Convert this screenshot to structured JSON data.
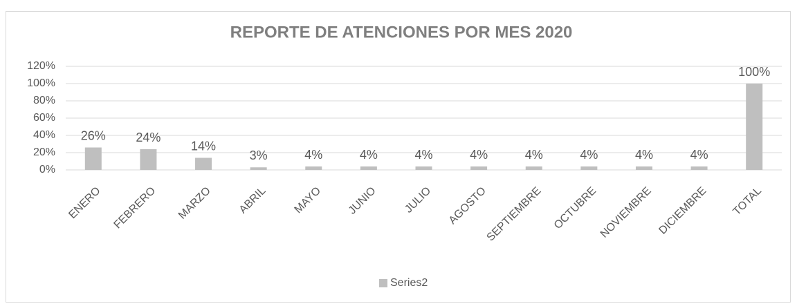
{
  "chart_data": {
    "type": "bar",
    "title": "REPORTE DE ATENCIONES POR MES 2020",
    "categories": [
      "ENERO",
      "FEBRERO",
      "MARZO",
      "ABRIL",
      "MAYO",
      "JUNIO",
      "JULIO",
      "AGOSTO",
      "SEPTIEMBRE",
      "OCTUBRE",
      "NOVIEMBRE",
      "DICIEMBRE",
      "TOTAL"
    ],
    "series": [
      {
        "name": "Series2",
        "color": "#bfbfbf",
        "values": [
          26,
          24,
          14,
          3,
          4,
          4,
          4,
          4,
          4,
          4,
          4,
          4,
          100
        ],
        "value_labels": [
          "26%",
          "24%",
          "14%",
          "3%",
          "4%",
          "4%",
          "4%",
          "4%",
          "4%",
          "4%",
          "4%",
          "4%",
          "100%"
        ]
      }
    ],
    "ylim": [
      0,
      120
    ],
    "yticks": [
      {
        "value": 0,
        "label": "0%"
      },
      {
        "value": 20,
        "label": "20%"
      },
      {
        "value": 40,
        "label": "40%"
      },
      {
        "value": 60,
        "label": "60%"
      },
      {
        "value": 80,
        "label": "80%"
      },
      {
        "value": 100,
        "label": "100%"
      },
      {
        "value": 120,
        "label": "120%"
      }
    ],
    "grid": true,
    "legend": "bottom"
  }
}
